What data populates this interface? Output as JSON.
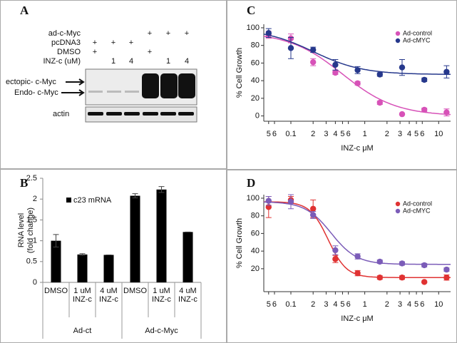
{
  "blot": {
    "panel_label": "A",
    "treatments": [
      {
        "label": "ad-c-Myc",
        "lanes": [
          null,
          null,
          null,
          "+",
          "+",
          "+"
        ]
      },
      {
        "label": "pcDNA3",
        "lanes": [
          "+",
          "+",
          "+",
          null,
          null,
          null
        ]
      },
      {
        "label": "DMSO",
        "lanes": [
          "+",
          null,
          null,
          "+",
          null,
          null
        ]
      },
      {
        "label": "INZ-c (uM)",
        "lanes": [
          null,
          1,
          4,
          null,
          1,
          4
        ]
      }
    ],
    "band_labels": [
      "ectopic- c-Myc",
      "Endo- c-Myc",
      "actin"
    ]
  },
  "chart_data": [
    {
      "type": "bar",
      "panel_label": "B",
      "y_label": [
        "RNA level",
        "(fold change)"
      ],
      "categories": [
        "DMSO",
        "1 uM INZ-c",
        "4 uM INZ-c",
        "DMSO",
        "1 uM INZ-c",
        "4 uM INZ-c"
      ],
      "group_labels": [
        "Ad-ct",
        "Ad-c-Myc"
      ],
      "series": [
        {
          "name": "c23 mRNA",
          "color": "#000000",
          "values": [
            1.0,
            0.67,
            0.66,
            2.08,
            2.23,
            1.21
          ],
          "errors": [
            0.15,
            0.02,
            0,
            0.05,
            0.07,
            0
          ]
        }
      ],
      "ylim": [
        0,
        2.5
      ],
      "yticks": [
        0,
        0.5,
        1,
        1.5,
        2,
        2.5
      ]
    },
    {
      "type": "scatter",
      "panel_label": "C",
      "y_label": "% Cell Growth",
      "x_label": "INZ-c μM",
      "x_scale": "log",
      "legend": "upper right",
      "x": [
        0.05,
        0.1,
        0.2,
        0.4,
        0.8,
        1.6,
        3.2,
        6.4,
        12.8
      ],
      "xlim": [
        0.043,
        14.5
      ],
      "xticks": [
        {
          "value": 0.05,
          "label": "5"
        },
        {
          "value": 0.06,
          "label": "6"
        },
        0.1,
        {
          "value": 0.2,
          "label": "2"
        },
        {
          "value": 0.3,
          "label": "3"
        },
        {
          "value": 0.4,
          "label": "4"
        },
        {
          "value": 0.5,
          "label": "5"
        },
        {
          "value": 0.6,
          "label": "6"
        },
        1,
        {
          "value": 2,
          "label": "2"
        },
        {
          "value": 3,
          "label": "3"
        },
        {
          "value": 4,
          "label": "4"
        },
        {
          "value": 5,
          "label": "5"
        },
        {
          "value": 6,
          "label": "6"
        },
        10
      ],
      "ylim": [
        -6,
        104
      ],
      "yticks": [
        0,
        20,
        40,
        60,
        80,
        100
      ],
      "series": [
        {
          "name": "Ad-control",
          "color": "#d752b8",
          "values": [
            92,
            88,
            61,
            49,
            37,
            15,
            2,
            7,
            4
          ],
          "errors": [
            4,
            5,
            4,
            2,
            2,
            2,
            1,
            2,
            4
          ],
          "fit": {
            "top": 95,
            "bottom": 0,
            "ic50": 0.5,
            "hill": 1.2
          }
        },
        {
          "name": "Ad-cMYC",
          "color": "#26388c",
          "values": [
            94,
            77,
            75,
            58,
            52,
            47,
            55,
            41,
            50
          ],
          "errors": [
            5,
            12,
            3,
            6,
            4,
            2,
            9,
            2,
            7
          ],
          "fit": {
            "top": 99,
            "bottom": 47,
            "ic50": 0.2,
            "hill": 1.3
          }
        }
      ]
    },
    {
      "type": "scatter",
      "panel_label": "D",
      "y_label": "% Cell Growth",
      "x_label": "INZ-c μM",
      "x_scale": "log",
      "legend": "upper right",
      "x": [
        0.05,
        0.1,
        0.2,
        0.4,
        0.8,
        1.6,
        3.2,
        6.4,
        12.8
      ],
      "xlim": [
        0.043,
        14.5
      ],
      "xticks": [
        {
          "value": 0.05,
          "label": "5"
        },
        {
          "value": 0.06,
          "label": "6"
        },
        0.1,
        {
          "value": 0.2,
          "label": "2"
        },
        {
          "value": 0.3,
          "label": "3"
        },
        {
          "value": 0.4,
          "label": "4"
        },
        {
          "value": 0.5,
          "label": "5"
        },
        {
          "value": 0.6,
          "label": "6"
        },
        1,
        {
          "value": 2,
          "label": "2"
        },
        {
          "value": 3,
          "label": "3"
        },
        {
          "value": 4,
          "label": "4"
        },
        {
          "value": 5,
          "label": "5"
        },
        {
          "value": 6,
          "label": "6"
        },
        10
      ],
      "ylim": [
        -6,
        104
      ],
      "yticks": [
        20,
        40,
        60,
        80,
        100
      ],
      "series": [
        {
          "name": "Ad-control",
          "color": "#e03232",
          "values": [
            90,
            98,
            88,
            31,
            15,
            10,
            10,
            5,
            10
          ],
          "errors": [
            12,
            4,
            10,
            4,
            3,
            2,
            2,
            1,
            3
          ],
          "fit": {
            "top": 96,
            "bottom": 10,
            "ic50": 0.32,
            "hill": 3.5
          }
        },
        {
          "name": "Ad-cMYC",
          "color": "#7b5cb8",
          "values": [
            97,
            96,
            81,
            41,
            34,
            28,
            26,
            24,
            19
          ],
          "errors": [
            5,
            8,
            4,
            5,
            3,
            2,
            2,
            2,
            2
          ],
          "fit": {
            "top": 96,
            "bottom": 25,
            "ic50": 0.35,
            "hill": 2.5
          }
        }
      ]
    }
  ]
}
